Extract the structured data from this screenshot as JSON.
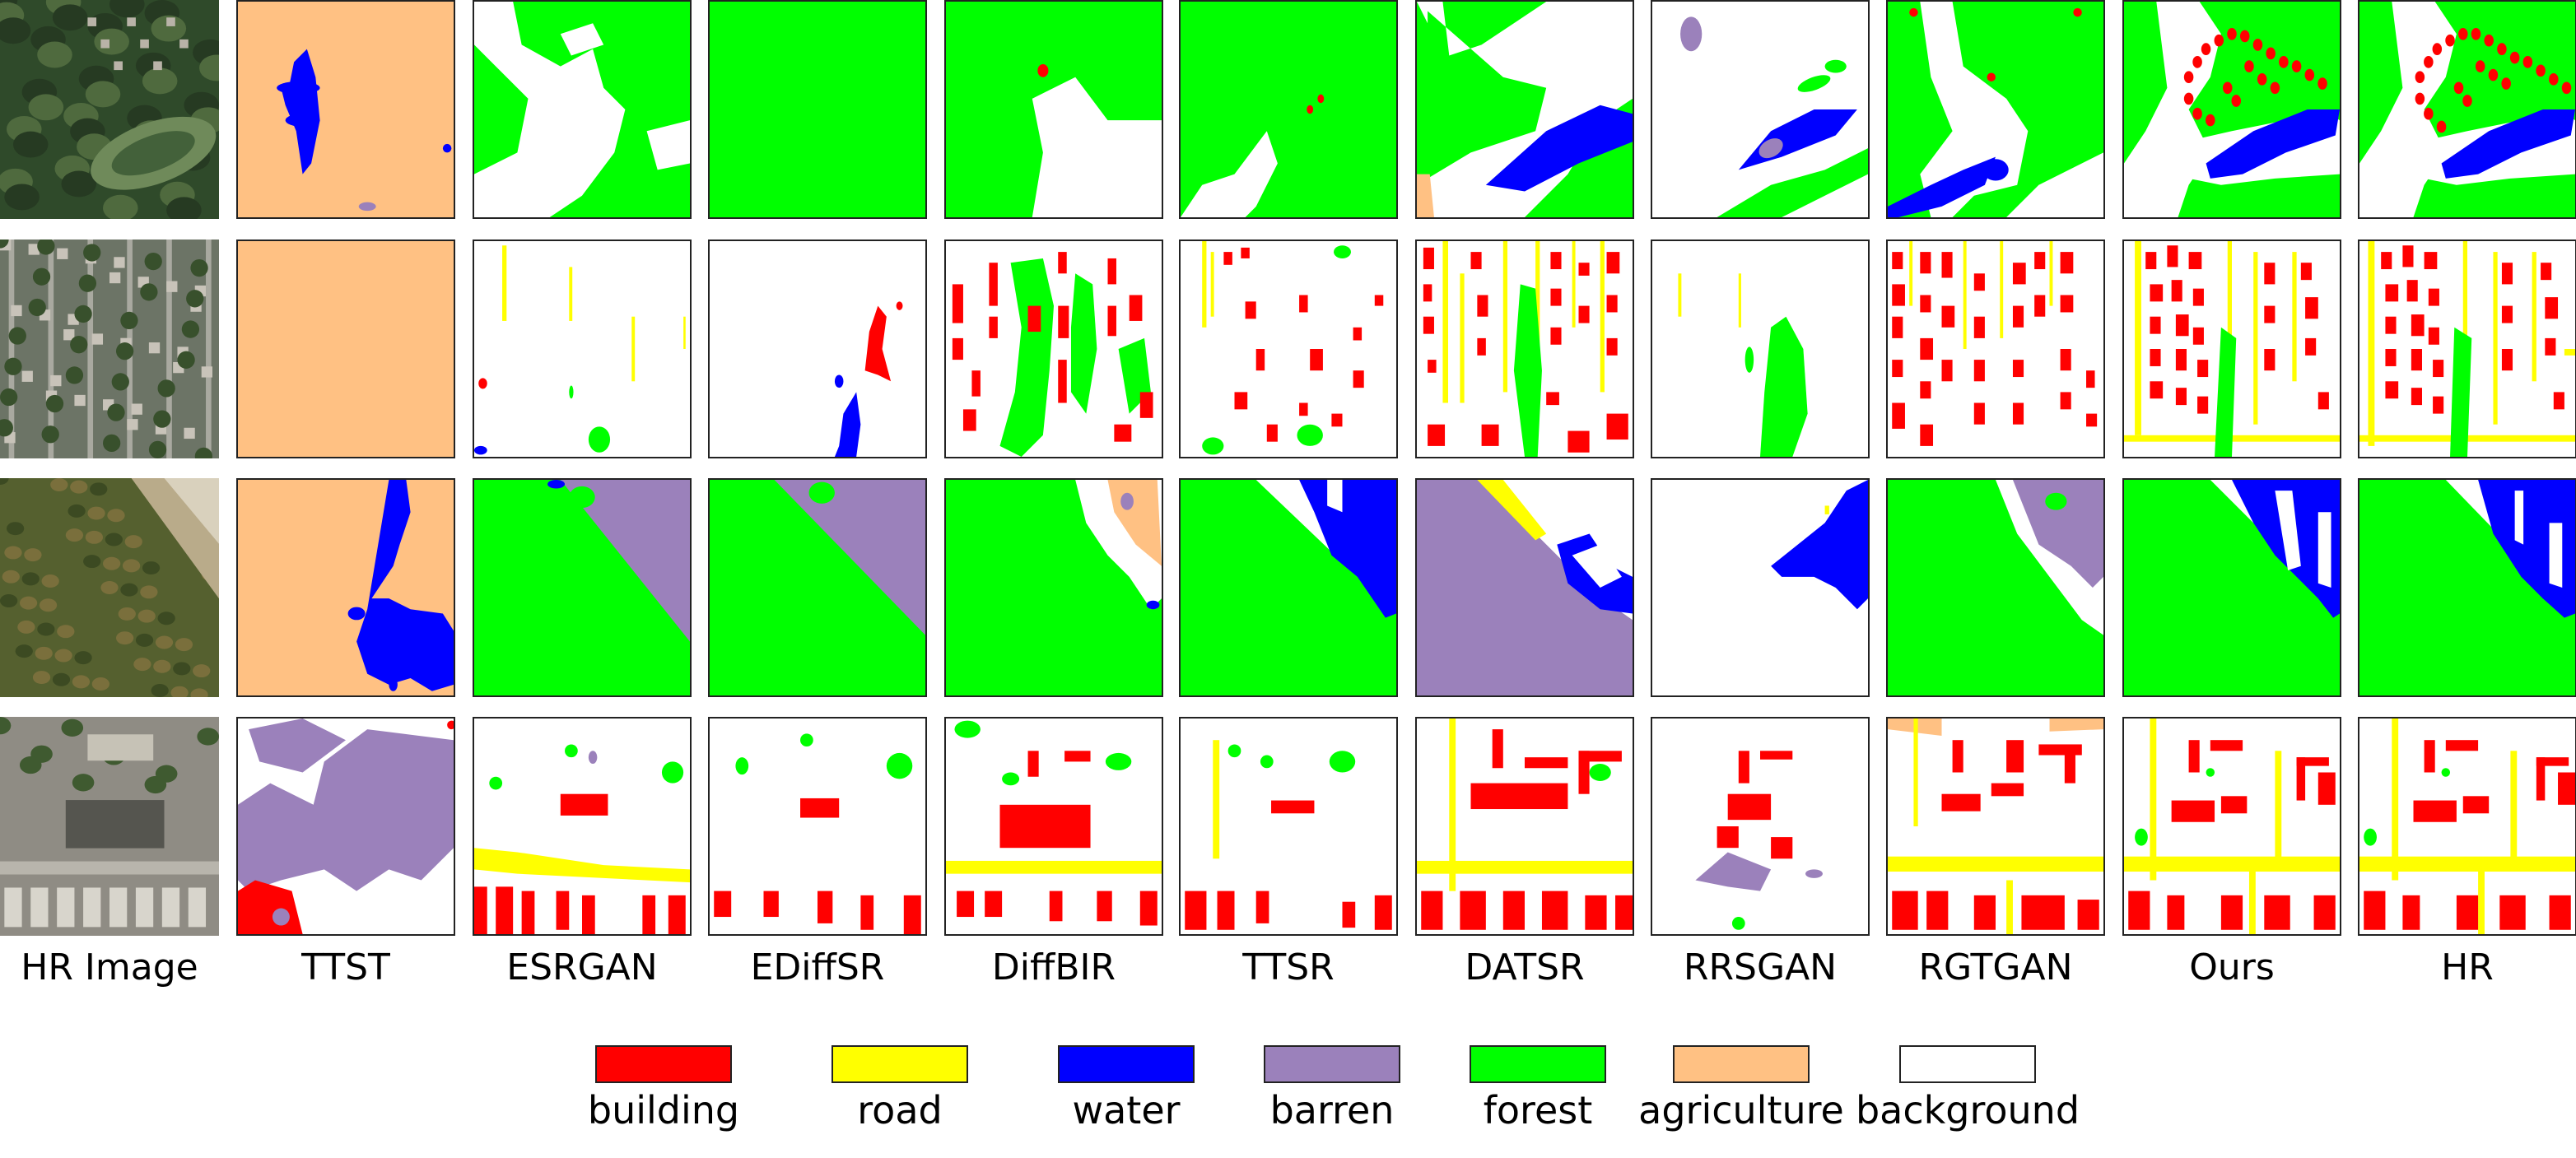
{
  "columns": [
    {
      "label": "HR Image"
    },
    {
      "label": "TTST"
    },
    {
      "label": "ESRGAN"
    },
    {
      "label": "EDiffSR"
    },
    {
      "label": "DiffBIR"
    },
    {
      "label": "TTSR"
    },
    {
      "label": "DATSR"
    },
    {
      "label": "RRSGAN"
    },
    {
      "label": "RGTGAN"
    },
    {
      "label": "Ours"
    },
    {
      "label": "HR"
    }
  ],
  "legend": [
    {
      "label": "building",
      "color": "#ff0000"
    },
    {
      "label": "road",
      "color": "#ffff00"
    },
    {
      "label": "water",
      "color": "#0000ff"
    },
    {
      "label": "barren",
      "color": "#9b81bb"
    },
    {
      "label": "forest",
      "color": "#00ff00"
    },
    {
      "label": "agriculture",
      "color": "#ffc183"
    },
    {
      "label": "background",
      "color": "#ffffff"
    }
  ]
}
